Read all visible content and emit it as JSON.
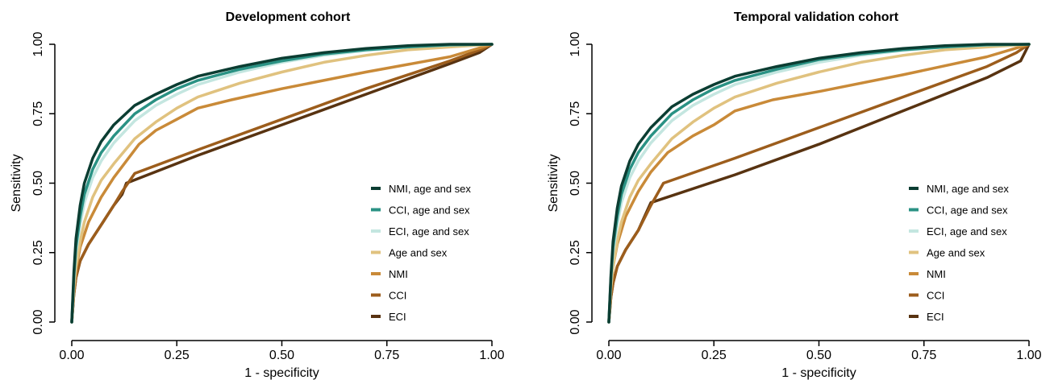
{
  "chart_data": [
    {
      "type": "line",
      "title": "Development cohort",
      "xlabel": "1 - specificity",
      "ylabel": "Sensitivity",
      "xlim": [
        0,
        1
      ],
      "ylim": [
        0,
        1
      ],
      "xticks": [
        "0.00",
        "0.25",
        "0.50",
        "0.75",
        "1.00"
      ],
      "yticks": [
        "0.00",
        "0.25",
        "0.50",
        "0.75",
        "1.00"
      ],
      "legend_position": "bottom-right",
      "series": [
        {
          "name": "NMI, age and sex",
          "color": "#0b3d32",
          "x": [
            0,
            0.005,
            0.01,
            0.02,
            0.03,
            0.05,
            0.07,
            0.1,
            0.15,
            0.2,
            0.25,
            0.3,
            0.4,
            0.5,
            0.6,
            0.7,
            0.8,
            0.9,
            1.0
          ],
          "y": [
            0,
            0.18,
            0.3,
            0.42,
            0.5,
            0.59,
            0.65,
            0.71,
            0.78,
            0.82,
            0.855,
            0.885,
            0.92,
            0.95,
            0.97,
            0.985,
            0.995,
            1.0,
            1.0
          ]
        },
        {
          "name": "CCI, age and sex",
          "color": "#2a9284",
          "x": [
            0,
            0.005,
            0.01,
            0.02,
            0.03,
            0.05,
            0.07,
            0.1,
            0.15,
            0.2,
            0.25,
            0.3,
            0.4,
            0.5,
            0.6,
            0.7,
            0.8,
            0.9,
            1.0
          ],
          "y": [
            0,
            0.16,
            0.27,
            0.38,
            0.46,
            0.55,
            0.61,
            0.67,
            0.75,
            0.8,
            0.84,
            0.87,
            0.91,
            0.94,
            0.965,
            0.98,
            0.99,
            0.998,
            1.0
          ]
        },
        {
          "name": "ECI, age and sex",
          "color": "#c4e6e0",
          "x": [
            0,
            0.005,
            0.01,
            0.02,
            0.03,
            0.05,
            0.07,
            0.1,
            0.15,
            0.2,
            0.25,
            0.3,
            0.4,
            0.5,
            0.6,
            0.7,
            0.8,
            0.9,
            1.0
          ],
          "y": [
            0,
            0.15,
            0.25,
            0.35,
            0.43,
            0.52,
            0.58,
            0.645,
            0.725,
            0.78,
            0.82,
            0.855,
            0.9,
            0.935,
            0.96,
            0.978,
            0.99,
            0.997,
            1.0
          ]
        },
        {
          "name": "Age and sex",
          "color": "#e0c27f",
          "x": [
            0,
            0.005,
            0.01,
            0.02,
            0.03,
            0.05,
            0.07,
            0.1,
            0.15,
            0.2,
            0.25,
            0.3,
            0.4,
            0.5,
            0.6,
            0.7,
            0.8,
            0.9,
            1.0
          ],
          "y": [
            0,
            0.12,
            0.2,
            0.29,
            0.36,
            0.45,
            0.51,
            0.57,
            0.66,
            0.72,
            0.77,
            0.81,
            0.86,
            0.9,
            0.935,
            0.96,
            0.98,
            0.99,
            1.0
          ]
        },
        {
          "name": "NMI",
          "color": "#c98a38",
          "x": [
            0,
            0.005,
            0.01,
            0.02,
            0.04,
            0.07,
            0.1,
            0.13,
            0.16,
            0.2,
            0.25,
            0.3,
            0.38,
            0.5,
            0.7,
            0.9,
            1.0
          ],
          "y": [
            0,
            0.12,
            0.19,
            0.27,
            0.36,
            0.45,
            0.52,
            0.58,
            0.64,
            0.69,
            0.73,
            0.77,
            0.8,
            0.84,
            0.9,
            0.955,
            1.0
          ]
        },
        {
          "name": "CCI",
          "color": "#9c5d1c",
          "x": [
            0,
            0.005,
            0.01,
            0.02,
            0.04,
            0.07,
            0.1,
            0.12,
            0.15,
            0.3,
            0.5,
            0.7,
            0.9,
            0.98,
            1.0
          ],
          "y": [
            0,
            0.1,
            0.16,
            0.22,
            0.28,
            0.35,
            0.42,
            0.47,
            0.535,
            0.62,
            0.73,
            0.84,
            0.94,
            0.985,
            1.0
          ]
        },
        {
          "name": "ECI",
          "color": "#583311",
          "x": [
            0,
            0.005,
            0.01,
            0.02,
            0.04,
            0.07,
            0.1,
            0.12,
            0.13,
            0.3,
            0.5,
            0.7,
            0.9,
            0.97,
            1.0
          ],
          "y": [
            0,
            0.1,
            0.16,
            0.22,
            0.28,
            0.35,
            0.42,
            0.46,
            0.5,
            0.6,
            0.71,
            0.82,
            0.93,
            0.97,
            1.0
          ]
        }
      ]
    },
    {
      "type": "line",
      "title": "Temporal validation cohort",
      "xlabel": "1 - specificity",
      "ylabel": "Sensitivity",
      "xlim": [
        0,
        1
      ],
      "ylim": [
        0,
        1
      ],
      "xticks": [
        "0.00",
        "0.25",
        "0.50",
        "0.75",
        "1.00"
      ],
      "yticks": [
        "0.00",
        "0.25",
        "0.50",
        "0.75",
        "1.00"
      ],
      "legend_position": "bottom-right",
      "series": [
        {
          "name": "NMI, age and sex",
          "color": "#0b3d32",
          "x": [
            0,
            0.005,
            0.01,
            0.02,
            0.03,
            0.05,
            0.07,
            0.1,
            0.15,
            0.2,
            0.25,
            0.3,
            0.4,
            0.5,
            0.6,
            0.7,
            0.8,
            0.9,
            1.0
          ],
          "y": [
            0,
            0.17,
            0.29,
            0.41,
            0.49,
            0.58,
            0.64,
            0.7,
            0.775,
            0.82,
            0.855,
            0.885,
            0.92,
            0.95,
            0.97,
            0.985,
            0.995,
            1.0,
            1.0
          ]
        },
        {
          "name": "CCI, age and sex",
          "color": "#2a9284",
          "x": [
            0,
            0.005,
            0.01,
            0.02,
            0.03,
            0.05,
            0.07,
            0.1,
            0.15,
            0.2,
            0.25,
            0.3,
            0.4,
            0.5,
            0.6,
            0.7,
            0.8,
            0.9,
            1.0
          ],
          "y": [
            0,
            0.16,
            0.27,
            0.38,
            0.46,
            0.55,
            0.61,
            0.67,
            0.75,
            0.8,
            0.84,
            0.87,
            0.91,
            0.945,
            0.965,
            0.98,
            0.99,
            0.998,
            1.0
          ]
        },
        {
          "name": "ECI, age and sex",
          "color": "#c4e6e0",
          "x": [
            0,
            0.005,
            0.01,
            0.02,
            0.03,
            0.05,
            0.07,
            0.1,
            0.15,
            0.2,
            0.25,
            0.3,
            0.4,
            0.5,
            0.6,
            0.7,
            0.8,
            0.9,
            1.0
          ],
          "y": [
            0,
            0.15,
            0.25,
            0.35,
            0.43,
            0.52,
            0.58,
            0.645,
            0.725,
            0.78,
            0.82,
            0.855,
            0.9,
            0.935,
            0.96,
            0.978,
            0.99,
            0.997,
            1.0
          ]
        },
        {
          "name": "Age and sex",
          "color": "#e0c27f",
          "x": [
            0,
            0.005,
            0.01,
            0.02,
            0.03,
            0.05,
            0.07,
            0.1,
            0.15,
            0.2,
            0.25,
            0.3,
            0.4,
            0.5,
            0.6,
            0.7,
            0.8,
            0.9,
            1.0
          ],
          "y": [
            0,
            0.12,
            0.2,
            0.29,
            0.36,
            0.45,
            0.51,
            0.57,
            0.66,
            0.72,
            0.77,
            0.81,
            0.86,
            0.9,
            0.935,
            0.96,
            0.98,
            0.99,
            1.0
          ]
        },
        {
          "name": "NMI",
          "color": "#c98a38",
          "x": [
            0,
            0.005,
            0.01,
            0.02,
            0.04,
            0.07,
            0.1,
            0.14,
            0.2,
            0.25,
            0.3,
            0.39,
            0.5,
            0.7,
            0.9,
            1.0
          ],
          "y": [
            0,
            0.13,
            0.2,
            0.28,
            0.38,
            0.47,
            0.54,
            0.61,
            0.67,
            0.71,
            0.76,
            0.8,
            0.83,
            0.89,
            0.955,
            1.0
          ]
        },
        {
          "name": "CCI",
          "color": "#9c5d1c",
          "x": [
            0,
            0.005,
            0.01,
            0.02,
            0.04,
            0.07,
            0.1,
            0.13,
            0.3,
            0.5,
            0.7,
            0.9,
            0.97,
            1.0
          ],
          "y": [
            0,
            0.09,
            0.14,
            0.2,
            0.26,
            0.33,
            0.42,
            0.5,
            0.59,
            0.7,
            0.81,
            0.92,
            0.97,
            1.0
          ]
        },
        {
          "name": "ECI",
          "color": "#583311",
          "x": [
            0,
            0.005,
            0.01,
            0.02,
            0.04,
            0.07,
            0.1,
            0.3,
            0.5,
            0.7,
            0.9,
            0.98,
            0.99,
            1.0
          ],
          "y": [
            0,
            0.09,
            0.14,
            0.2,
            0.26,
            0.33,
            0.43,
            0.53,
            0.64,
            0.76,
            0.88,
            0.94,
            0.97,
            1.0
          ]
        }
      ]
    }
  ]
}
